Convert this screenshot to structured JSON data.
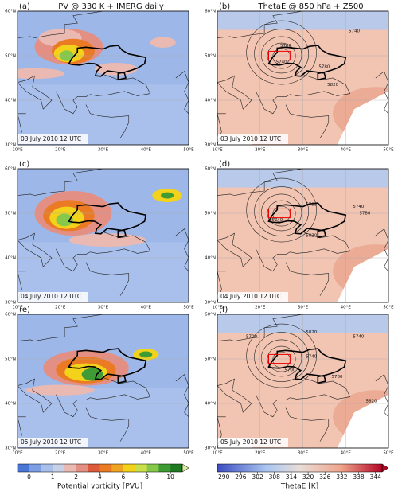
{
  "panels": [
    {
      "letter": "(a)",
      "title": "PV @ 330 K + IMERG daily",
      "date": "03 July 2010 12 UTC"
    },
    {
      "letter": "(b)",
      "title": "ThetaE @ 850 hPa + Z500",
      "date": "03 July 2010 12 UTC",
      "contour_labels": [
        5700,
        5740,
        5740,
        5780,
        5820
      ]
    },
    {
      "letter": "(c)",
      "date": "04 July 2010 12 UTC"
    },
    {
      "letter": "(d)",
      "date": "04 July 2010 12 UTC",
      "contour_labels": [
        5780,
        5740,
        5780,
        5740,
        5820
      ]
    },
    {
      "letter": "(e)",
      "date": "05 July 2010 12 UTC"
    },
    {
      "letter": "(f)",
      "date": "05 July 2010 12 UTC",
      "contour_labels": [
        5700,
        5820,
        5740,
        5740,
        5700,
        5780,
        5820
      ]
    }
  ],
  "lat_labels": [
    "60°N",
    "50°N",
    "40°N",
    "30°N"
  ],
  "lon_labels": [
    "10°E",
    "20°E",
    "30°E",
    "40°E",
    "50°E"
  ],
  "colorbars": [
    {
      "label": "Potential vorticity [PVU]",
      "ticks": [
        0,
        1,
        2,
        4,
        6,
        8,
        10
      ]
    },
    {
      "label": "ThetaE [K]",
      "ticks": [
        290,
        296,
        302,
        308,
        314,
        320,
        326,
        332,
        338,
        344
      ]
    }
  ]
}
